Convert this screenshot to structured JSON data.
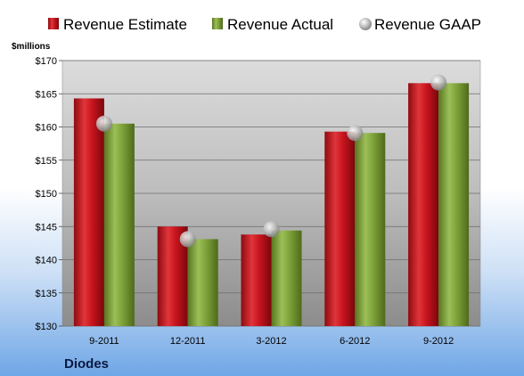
{
  "legend": {
    "items": [
      {
        "label": "Revenue Estimate",
        "color": "#c8141e",
        "marker": "square"
      },
      {
        "label": "Revenue Actual",
        "color": "#7ea23a",
        "marker": "square"
      },
      {
        "label": "Revenue GAAP",
        "color": "#b8b8b8",
        "marker": "sphere"
      }
    ]
  },
  "footer": {
    "company": "Diodes"
  },
  "chart_data": {
    "type": "bar",
    "unit_label": "$millions",
    "categories": [
      "9-2011",
      "12-2011",
      "3-2012",
      "6-2012",
      "9-2012"
    ],
    "series": [
      {
        "name": "Revenue Estimate",
        "type": "bar",
        "color": "#c8141e",
        "values": [
          164.3,
          145.0,
          143.8,
          159.3,
          166.6
        ]
      },
      {
        "name": "Revenue Actual",
        "type": "bar",
        "color": "#7ea23a",
        "values": [
          160.5,
          143.1,
          144.4,
          159.1,
          166.6
        ]
      },
      {
        "name": "Revenue GAAP",
        "type": "marker",
        "color": "#b8b8b8",
        "values": [
          160.5,
          143.1,
          144.6,
          159.1,
          166.7
        ]
      }
    ],
    "ylim": [
      130,
      170
    ],
    "yticks": [
      130,
      135,
      140,
      145,
      150,
      155,
      160,
      165,
      170
    ],
    "ytick_labels": [
      "$130",
      "$135",
      "$140",
      "$145",
      "$150",
      "$155",
      "$160",
      "$165",
      "$170"
    ],
    "grid": true,
    "legend_position": "top"
  }
}
